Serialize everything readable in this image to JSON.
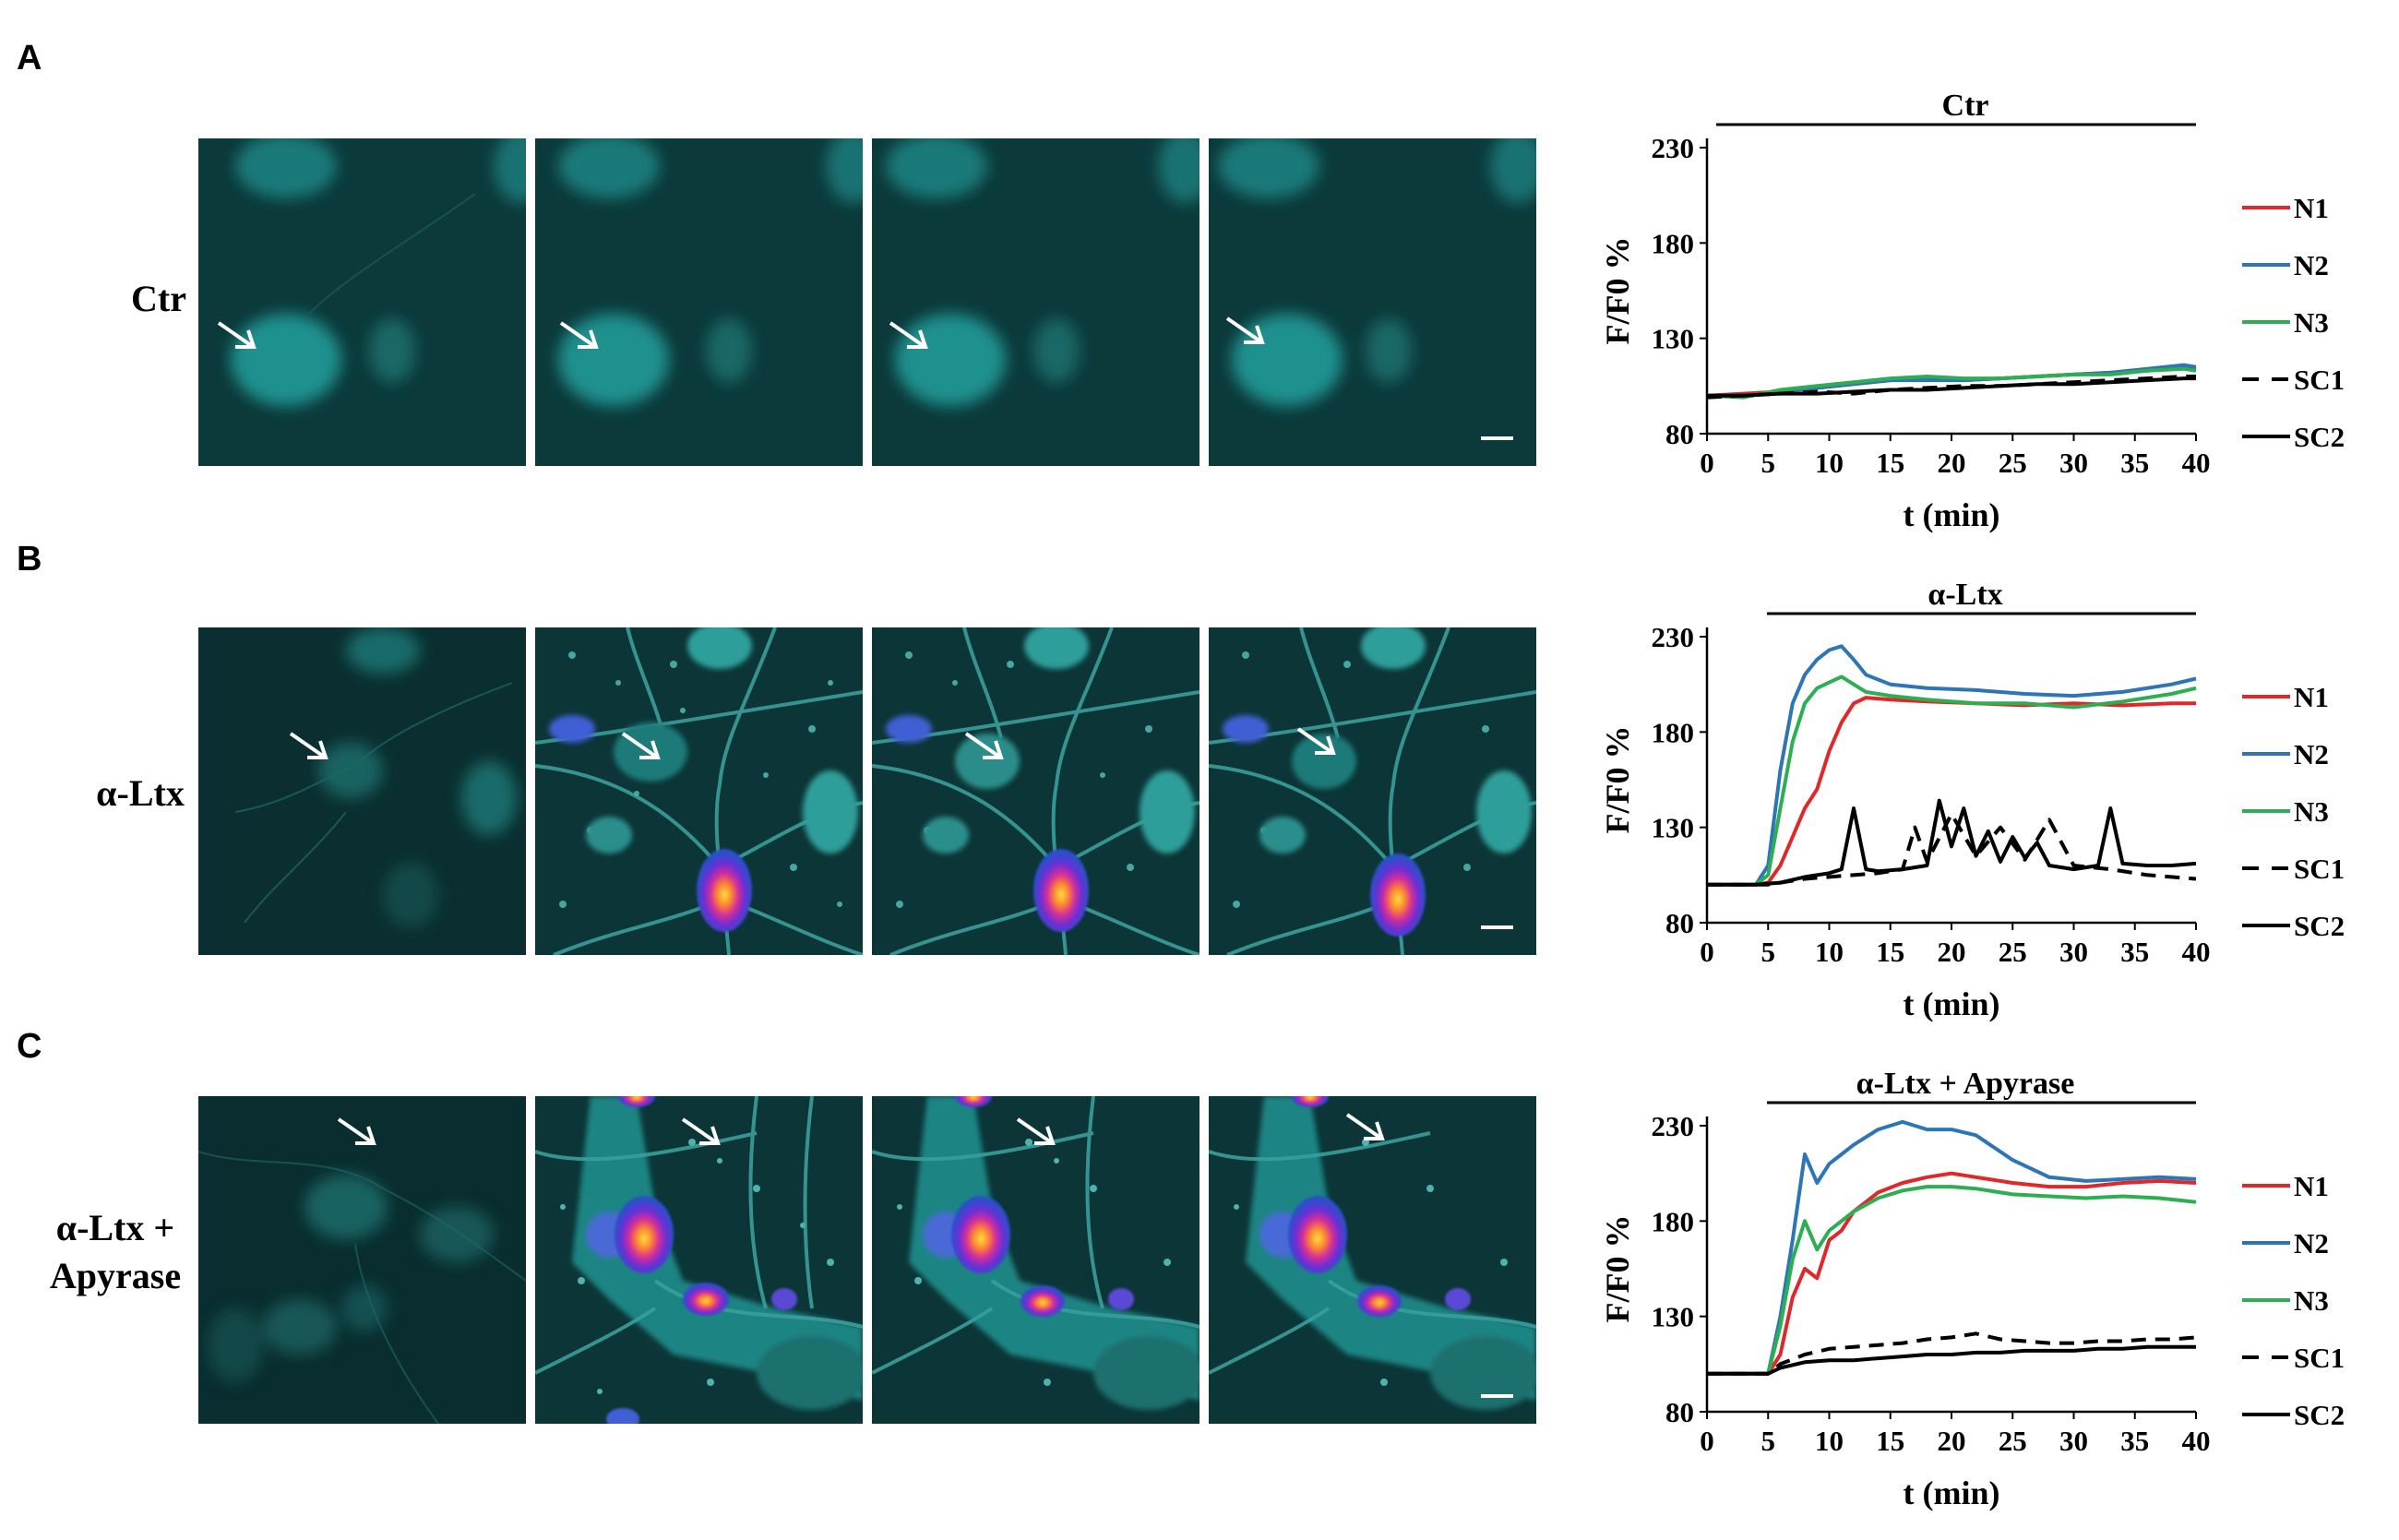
{
  "panels": [
    {
      "letter": "A",
      "condition_label": [
        "Ctr"
      ],
      "images": [
        {
          "style": "dim"
        },
        {
          "style": "dim"
        },
        {
          "style": "dim"
        },
        {
          "style": "dim"
        }
      ],
      "chart_data": {
        "type": "line",
        "title": "Ctr",
        "xlabel": "t (min)",
        "ylabel": "F/F0 %",
        "xlim": [
          0,
          40
        ],
        "ylim": [
          80,
          230
        ],
        "xticks": [
          0,
          5,
          10,
          15,
          20,
          25,
          30,
          35,
          40
        ],
        "yticks": [
          80,
          130,
          180,
          230
        ],
        "legend_position": "right",
        "series": [
          {
            "name": "N1",
            "color": "#e0282a",
            "dash": "solid",
            "x": [
              0,
              3,
              6,
              9,
              12,
              15,
              18,
              21,
              24,
              27,
              30,
              33,
              36,
              39,
              40
            ],
            "y": [
              100,
              101,
              102,
              104,
              106,
              108,
              109,
              108,
              109,
              110,
              111,
              112,
              113,
              115,
              114
            ]
          },
          {
            "name": "N2",
            "color": "#2e75b6",
            "dash": "solid",
            "x": [
              0,
              3,
              6,
              9,
              12,
              15,
              18,
              21,
              24,
              27,
              30,
              33,
              36,
              39,
              40
            ],
            "y": [
              100,
              100,
              102,
              104,
              106,
              108,
              108,
              108,
              109,
              110,
              111,
              112,
              114,
              116,
              115
            ]
          },
          {
            "name": "N3",
            "color": "#2eae52",
            "dash": "solid",
            "x": [
              0,
              3,
              6,
              9,
              12,
              15,
              18,
              21,
              24,
              27,
              30,
              33,
              36,
              39,
              40
            ],
            "y": [
              100,
              99,
              103,
              105,
              107,
              109,
              110,
              109,
              109,
              110,
              111,
              111,
              113,
              114,
              113
            ]
          },
          {
            "name": "SC1",
            "color": "#000000",
            "dash": "dashed",
            "x": [
              0,
              3,
              6,
              9,
              12,
              15,
              18,
              21,
              24,
              27,
              30,
              33,
              36,
              39,
              40
            ],
            "y": [
              99,
              100,
              101,
              102,
              101,
              103,
              104,
              105,
              105,
              106,
              107,
              108,
              109,
              110,
              110
            ]
          },
          {
            "name": "SC2",
            "color": "#000000",
            "dash": "solid",
            "x": [
              0,
              3,
              6,
              9,
              12,
              15,
              18,
              21,
              24,
              27,
              30,
              33,
              36,
              39,
              40
            ],
            "y": [
              100,
              100,
              101,
              101,
              102,
              103,
              103,
              104,
              105,
              106,
              106,
              107,
              108,
              109,
              109
            ]
          }
        ]
      }
    },
    {
      "letter": "B",
      "condition_label": [
        "α-Ltx"
      ],
      "images": [
        {
          "style": "dim"
        },
        {
          "style": "bright"
        },
        {
          "style": "bright"
        },
        {
          "style": "bright"
        }
      ],
      "chart_data": {
        "type": "line",
        "title": "α-Ltx",
        "xlabel": "t (min)",
        "ylabel": "F/F0 %",
        "xlim": [
          0,
          40
        ],
        "ylim": [
          80,
          230
        ],
        "xticks": [
          0,
          5,
          10,
          15,
          20,
          25,
          30,
          35,
          40
        ],
        "yticks": [
          80,
          130,
          180,
          230
        ],
        "legend_position": "right",
        "series": [
          {
            "name": "N1",
            "color": "#e0282a",
            "dash": "solid",
            "x": [
              0,
              4,
              5,
              6,
              7,
              8,
              9,
              10,
              11,
              12,
              13,
              15,
              18,
              22,
              26,
              30,
              34,
              38,
              40
            ],
            "y": [
              100,
              100,
              101,
              110,
              125,
              140,
              150,
              170,
              185,
              195,
              198,
              197,
              196,
              195,
              194,
              195,
              194,
              195,
              195
            ]
          },
          {
            "name": "N2",
            "color": "#2e75b6",
            "dash": "solid",
            "x": [
              0,
              4,
              5,
              6,
              7,
              8,
              9,
              10,
              11,
              12,
              13,
              15,
              18,
              22,
              26,
              30,
              34,
              38,
              40
            ],
            "y": [
              100,
              100,
              110,
              160,
              195,
              210,
              218,
              223,
              225,
              218,
              210,
              205,
              203,
              202,
              200,
              199,
              201,
              205,
              208
            ]
          },
          {
            "name": "N3",
            "color": "#2eae52",
            "dash": "solid",
            "x": [
              0,
              4,
              5,
              6,
              7,
              8,
              9,
              10,
              11,
              12,
              13,
              15,
              18,
              22,
              26,
              30,
              34,
              38,
              40
            ],
            "y": [
              100,
              100,
              105,
              140,
              175,
              195,
              203,
              206,
              209,
              205,
              201,
              199,
              197,
              195,
              195,
              193,
              196,
              200,
              203
            ]
          },
          {
            "name": "SC1",
            "color": "#000000",
            "dash": "dashed",
            "x": [
              0,
              4,
              5,
              6,
              8,
              10,
              14,
              16,
              17,
              18,
              20,
              22,
              24,
              26,
              28,
              30,
              33,
              36,
              38,
              40
            ],
            "y": [
              100,
              100,
              100,
              101,
              103,
              104,
              106,
              108,
              130,
              112,
              137,
              115,
              130,
              113,
              134,
              110,
              108,
              105,
              104,
              103
            ]
          },
          {
            "name": "SC2",
            "color": "#000000",
            "dash": "solid",
            "x": [
              0,
              4,
              6,
              8,
              10,
              11,
              12,
              13,
              14,
              16,
              18,
              19,
              20,
              21,
              22,
              23,
              24,
              25,
              26,
              27,
              28,
              30,
              32,
              33,
              34,
              36,
              38,
              40
            ],
            "y": [
              100,
              100,
              101,
              104,
              106,
              108,
              140,
              108,
              107,
              108,
              110,
              144,
              120,
              140,
              115,
              128,
              112,
              125,
              114,
              122,
              110,
              108,
              110,
              140,
              111,
              110,
              110,
              111
            ]
          }
        ]
      }
    },
    {
      "letter": "C",
      "condition_label": [
        "α-Ltx +",
        "Apyrase"
      ],
      "images": [
        {
          "style": "dim"
        },
        {
          "style": "bright"
        },
        {
          "style": "bright"
        },
        {
          "style": "bright"
        }
      ],
      "chart_data": {
        "type": "line",
        "title": "α-Ltx + Apyrase",
        "xlabel": "t (min)",
        "ylabel": "F/F0 %",
        "xlim": [
          0,
          40
        ],
        "ylim": [
          80,
          230
        ],
        "xticks": [
          0,
          5,
          10,
          15,
          20,
          25,
          30,
          35,
          40
        ],
        "yticks": [
          80,
          130,
          180,
          230
        ],
        "legend_position": "right",
        "series": [
          {
            "name": "N1",
            "color": "#e0282a",
            "dash": "solid",
            "x": [
              0,
              5,
              6,
              7,
              8,
              9,
              10,
              11,
              12,
              14,
              16,
              18,
              20,
              22,
              25,
              28,
              31,
              34,
              37,
              40
            ],
            "y": [
              100,
              100,
              110,
              140,
              155,
              150,
              170,
              175,
              185,
              195,
              200,
              203,
              205,
              203,
              200,
              198,
              198,
              200,
              201,
              200
            ]
          },
          {
            "name": "N2",
            "color": "#2e75b6",
            "dash": "solid",
            "x": [
              0,
              5,
              6,
              7,
              8,
              9,
              10,
              11,
              12,
              14,
              16,
              18,
              20,
              22,
              25,
              28,
              31,
              34,
              37,
              40
            ],
            "y": [
              100,
              100,
              130,
              170,
              215,
              200,
              210,
              215,
              220,
              228,
              232,
              228,
              228,
              225,
              212,
              203,
              201,
              202,
              203,
              202
            ]
          },
          {
            "name": "N3",
            "color": "#2eae52",
            "dash": "solid",
            "x": [
              0,
              5,
              6,
              7,
              8,
              9,
              10,
              11,
              12,
              14,
              16,
              18,
              20,
              22,
              25,
              28,
              31,
              34,
              37,
              40
            ],
            "y": [
              100,
              100,
              125,
              160,
              180,
              165,
              175,
              180,
              185,
              192,
              196,
              198,
              198,
              197,
              194,
              193,
              192,
              193,
              192,
              190
            ]
          },
          {
            "name": "SC1",
            "color": "#000000",
            "dash": "dashed",
            "x": [
              0,
              5,
              6,
              8,
              10,
              12,
              14,
              16,
              18,
              20,
              22,
              24,
              26,
              28,
              30,
              32,
              34,
              36,
              38,
              40
            ],
            "y": [
              100,
              100,
              105,
              110,
              113,
              114,
              115,
              116,
              118,
              119,
              121,
              118,
              117,
              116,
              116,
              117,
              117,
              118,
              118,
              119
            ]
          },
          {
            "name": "SC2",
            "color": "#000000",
            "dash": "solid",
            "x": [
              0,
              5,
              6,
              8,
              10,
              12,
              14,
              16,
              18,
              20,
              22,
              24,
              26,
              28,
              30,
              32,
              34,
              36,
              38,
              40
            ],
            "y": [
              100,
              100,
              103,
              106,
              107,
              107,
              108,
              109,
              110,
              110,
              111,
              111,
              112,
              112,
              112,
              113,
              113,
              114,
              114,
              114
            ]
          }
        ]
      }
    }
  ]
}
